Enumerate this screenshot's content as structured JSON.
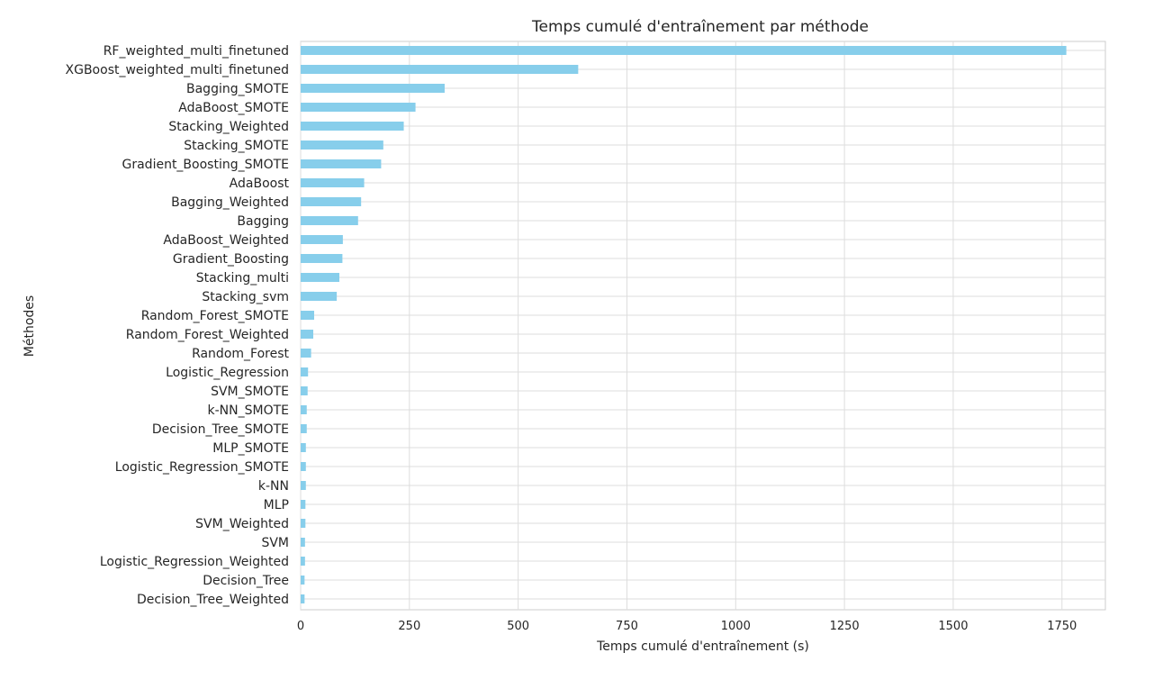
{
  "chart_data": {
    "type": "bar",
    "orientation": "horizontal",
    "title": "Temps cumulé d'entraînement par méthode",
    "xlabel": "Temps cumulé d'entraînement (s)",
    "ylabel": "Méthodes",
    "xlim": [
      0,
      1850
    ],
    "xticks": [
      0,
      250,
      500,
      750,
      1000,
      1250,
      1500,
      1750
    ],
    "grid": true,
    "bar_color": "#87CEEB",
    "grid_color": "#dddddd",
    "categories": [
      "RF_weighted_multi_finetuned",
      "XGBoost_weighted_multi_finetuned",
      "Bagging_SMOTE",
      "AdaBoost_SMOTE",
      "Stacking_Weighted",
      "Stacking_SMOTE",
      "Gradient_Boosting_SMOTE",
      "AdaBoost",
      "Bagging_Weighted",
      "Bagging",
      "AdaBoost_Weighted",
      "Gradient_Boosting",
      "Stacking_multi",
      "Stacking_svm",
      "Random_Forest_SMOTE",
      "Random_Forest_Weighted",
      "Random_Forest",
      "Logistic_Regression",
      "SVM_SMOTE",
      "k-NN_SMOTE",
      "Decision_Tree_SMOTE",
      "MLP_SMOTE",
      "Logistic_Regression_SMOTE",
      "k-NN",
      "MLP",
      "SVM_Weighted",
      "SVM",
      "Logistic_Regression_Weighted",
      "Decision_Tree",
      "Decision_Tree_Weighted"
    ],
    "values": [
      1760,
      638,
      331,
      264,
      237,
      190,
      185,
      146,
      139,
      132,
      97,
      96,
      89,
      83,
      31,
      29,
      24,
      17,
      16,
      14,
      14,
      12,
      12,
      12,
      11,
      11,
      10,
      10,
      9,
      9
    ]
  }
}
